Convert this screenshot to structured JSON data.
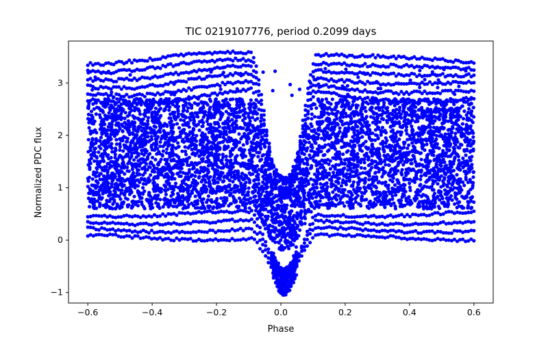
{
  "chart_data": {
    "type": "scatter",
    "title": "TIC 0219107776, period 0.2099 days",
    "xlabel": "Phase",
    "ylabel": "Normalized PDC flux",
    "xlim": [
      -0.66,
      0.66
    ],
    "ylim": [
      -1.2,
      3.8
    ],
    "xticks": [
      -0.6,
      -0.4,
      -0.2,
      0.0,
      0.2,
      0.4,
      0.6
    ],
    "xtick_labels": [
      "−0.6",
      "−0.4",
      "−0.2",
      "0.0",
      "0.2",
      "0.4",
      "0.6"
    ],
    "yticks": [
      -1,
      0,
      1,
      2,
      3
    ],
    "ytick_labels": [
      "−1",
      "0",
      "1",
      "2",
      "3"
    ],
    "grid": false,
    "marker_color": "#0000ff",
    "series": [
      {
        "name": "phase-folded flux",
        "phase_range": [
          -0.6,
          0.6
        ],
        "dense_band": [
          0.6,
          2.7
        ],
        "upper_arcs_max": 3.65,
        "lower_arcs_min": 0.0,
        "dip_center_phase": 0.01,
        "dip_minimum": -1.05,
        "dip_half_width": 0.1,
        "approx_points": 9000
      }
    ]
  }
}
